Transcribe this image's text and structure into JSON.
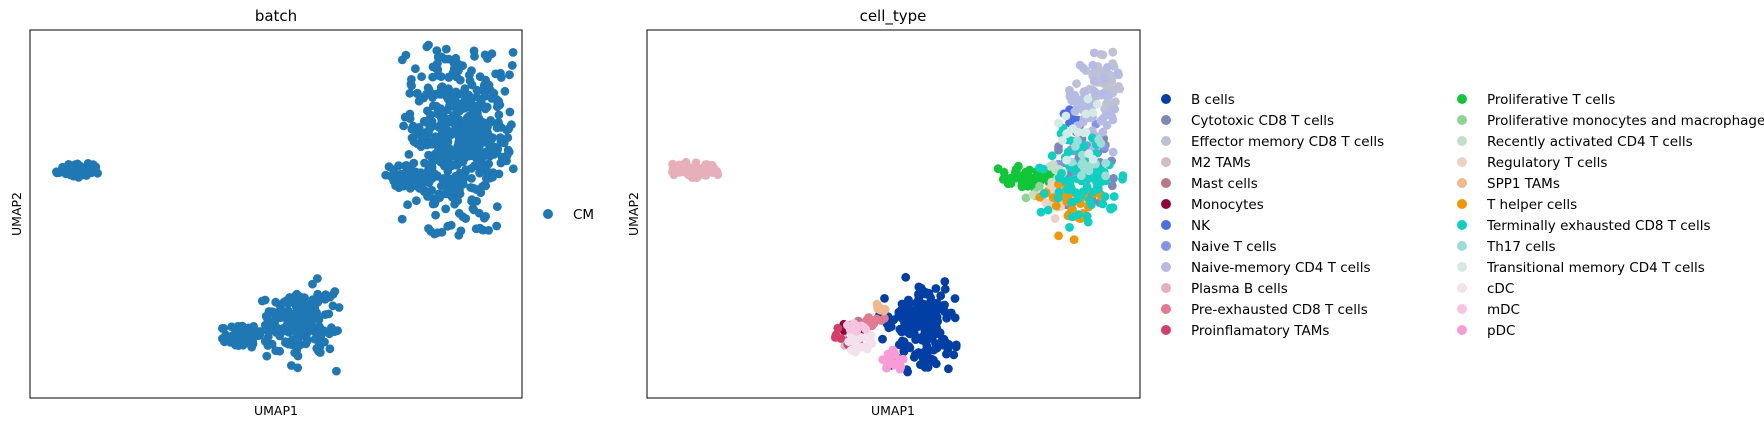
{
  "chart_data": [
    {
      "type": "scatter",
      "title": "batch",
      "xlabel": "UMAP1",
      "ylabel": "UMAP2",
      "xlim": [
        0,
        10
      ],
      "ylim": [
        0,
        10
      ],
      "grid": false,
      "legend_position": "right",
      "series": [
        {
          "name": "CM",
          "color": "#1f77b4",
          "clusters": [
            {
              "x": 1.0,
              "y": 6.2,
              "rx": 0.5,
              "ry": 0.22,
              "n": 70
            },
            {
              "x": 8.7,
              "y": 7.0,
              "rx": 1.2,
              "ry": 2.6,
              "n": 520
            },
            {
              "x": 7.8,
              "y": 6.0,
              "rx": 0.7,
              "ry": 0.4,
              "n": 70
            },
            {
              "x": 5.5,
              "y": 2.0,
              "rx": 0.8,
              "ry": 1.3,
              "n": 170
            },
            {
              "x": 4.3,
              "y": 1.7,
              "rx": 0.5,
              "ry": 0.4,
              "n": 70
            }
          ]
        }
      ]
    },
    {
      "type": "scatter",
      "title": "cell_type",
      "xlabel": "UMAP1",
      "ylabel": "UMAP2",
      "xlim": [
        0,
        10
      ],
      "ylim": [
        0,
        10
      ],
      "grid": false,
      "legend_position": "right",
      "series": [
        {
          "name": "B cells",
          "color": "#023fa5",
          "clusters": [
            {
              "x": 5.5,
              "y": 2.0,
              "rx": 0.8,
              "ry": 1.3,
              "n": 170
            }
          ]
        },
        {
          "name": "Cytotoxic CD8 T cells",
          "color": "#7d87b9",
          "clusters": [
            {
              "x": 8.9,
              "y": 6.2,
              "rx": 0.7,
              "ry": 1.2,
              "n": 45
            }
          ]
        },
        {
          "name": "Effector memory CD8 T cells",
          "color": "#bec1d4",
          "clusters": [
            {
              "x": 9.2,
              "y": 8.5,
              "rx": 0.5,
              "ry": 1.0,
              "n": 50
            }
          ]
        },
        {
          "name": "M2 TAMs",
          "color": "#d6bcc0",
          "clusters": [
            {
              "x": 4.2,
              "y": 1.7,
              "rx": 0.3,
              "ry": 0.3,
              "n": 10
            }
          ]
        },
        {
          "name": "Mast cells",
          "color": "#bb7784",
          "clusters": [
            {
              "x": 4.4,
              "y": 1.9,
              "rx": 0.2,
              "ry": 0.2,
              "n": 5
            }
          ]
        },
        {
          "name": "Monocytes",
          "color": "#8e063b",
          "clusters": [
            {
              "x": 4.2,
              "y": 1.9,
              "rx": 0.3,
              "ry": 0.2,
              "n": 14
            }
          ]
        },
        {
          "name": "NK",
          "color": "#4a6fe3",
          "clusters": [
            {
              "x": 8.6,
              "y": 7.6,
              "rx": 0.3,
              "ry": 0.3,
              "n": 6
            }
          ]
        },
        {
          "name": "Naive T cells",
          "color": "#8595e1",
          "clusters": [
            {
              "x": 8.8,
              "y": 6.5,
              "rx": 0.6,
              "ry": 1.0,
              "n": 18
            }
          ]
        },
        {
          "name": "Naive-memory CD4 T cells",
          "color": "#b5bbe3",
          "clusters": [
            {
              "x": 9.0,
              "y": 8.0,
              "rx": 0.6,
              "ry": 1.4,
              "n": 60
            }
          ]
        },
        {
          "name": "Plasma B cells",
          "color": "#e6afb9",
          "clusters": [
            {
              "x": 1.0,
              "y": 6.2,
              "rx": 0.5,
              "ry": 0.22,
              "n": 70
            }
          ]
        },
        {
          "name": "Pre-exhausted CD8 T cells",
          "color": "#e07b91",
          "clusters": [
            {
              "x": 4.6,
              "y": 2.1,
              "rx": 0.3,
              "ry": 0.2,
              "n": 10
            }
          ]
        },
        {
          "name": "Proinflamatory TAMs",
          "color": "#d33f6a",
          "clusters": [
            {
              "x": 4.1,
              "y": 1.6,
              "rx": 0.3,
              "ry": 0.3,
              "n": 10
            }
          ]
        },
        {
          "name": "Proliferative T cells",
          "color": "#11c638",
          "clusters": [
            {
              "x": 7.7,
              "y": 6.0,
              "rx": 0.7,
              "ry": 0.4,
              "n": 65
            }
          ]
        },
        {
          "name": "Proliferative monocytes and macrophages",
          "color": "#8dd593",
          "clusters": [
            {
              "x": 8.0,
              "y": 5.6,
              "rx": 0.4,
              "ry": 0.3,
              "n": 10
            }
          ]
        },
        {
          "name": "Recently activated CD4 T cells",
          "color": "#c6dec7",
          "clusters": [
            {
              "x": 8.3,
              "y": 5.8,
              "rx": 0.6,
              "ry": 0.8,
              "n": 18
            }
          ]
        },
        {
          "name": "Regulatory T cells",
          "color": "#ead3c6",
          "clusters": [
            {
              "x": 8.1,
              "y": 5.3,
              "rx": 0.5,
              "ry": 0.5,
              "n": 15
            }
          ]
        },
        {
          "name": "SPP1 TAMs",
          "color": "#f0b98d",
          "clusters": [
            {
              "x": 4.7,
              "y": 2.4,
              "rx": 0.2,
              "ry": 0.2,
              "n": 6
            }
          ]
        },
        {
          "name": "T helper cells",
          "color": "#ef9708",
          "clusters": [
            {
              "x": 8.6,
              "y": 5.4,
              "rx": 0.8,
              "ry": 1.1,
              "n": 35
            }
          ]
        },
        {
          "name": "Terminally exhausted CD8 T cells",
          "color": "#0fcfc0",
          "clusters": [
            {
              "x": 8.8,
              "y": 6.0,
              "rx": 0.9,
              "ry": 1.4,
              "n": 80
            }
          ]
        },
        {
          "name": "Th17 cells",
          "color": "#9cded6",
          "clusters": [
            {
              "x": 8.9,
              "y": 6.6,
              "rx": 0.6,
              "ry": 1.0,
              "n": 15
            }
          ]
        },
        {
          "name": "Transitional memory CD4 T cells",
          "color": "#d5eae7",
          "clusters": [
            {
              "x": 8.7,
              "y": 7.2,
              "rx": 0.6,
              "ry": 1.0,
              "n": 15
            }
          ]
        },
        {
          "name": "cDC",
          "color": "#f3e1eb",
          "clusters": [
            {
              "x": 4.3,
              "y": 1.5,
              "rx": 0.4,
              "ry": 0.3,
              "n": 20
            }
          ]
        },
        {
          "name": "mDC",
          "color": "#f6c4e1",
          "clusters": [
            {
              "x": 4.2,
              "y": 1.9,
              "rx": 0.3,
              "ry": 0.2,
              "n": 10
            }
          ]
        },
        {
          "name": "pDC",
          "color": "#f79cd4",
          "clusters": [
            {
              "x": 5.0,
              "y": 1.0,
              "rx": 0.3,
              "ry": 0.4,
              "n": 18
            }
          ]
        }
      ]
    }
  ]
}
